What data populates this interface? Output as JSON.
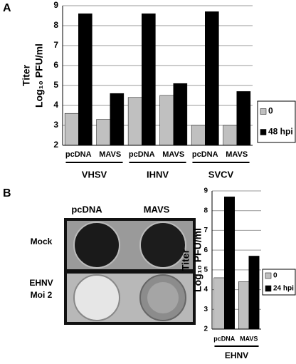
{
  "chart_data": [
    {
      "type": "bar",
      "y_label": [
        "Titer",
        "Log₁₀ PFU/ml"
      ],
      "categories": [
        "pcDNA",
        "MAVS",
        "pcDNA",
        "MAVS",
        "pcDNA",
        "MAVS"
      ],
      "groups": [
        "VHSV",
        "IHNV",
        "SVCV"
      ],
      "series": [
        {
          "name": "0",
          "color": "#c0c0c0",
          "values": [
            3.6,
            3.3,
            4.4,
            4.5,
            3.0,
            3.0
          ]
        },
        {
          "name": "48 hpi",
          "color": "#000000",
          "values": [
            8.6,
            4.6,
            8.6,
            5.1,
            8.7,
            4.7
          ]
        }
      ],
      "ylim": [
        2,
        9
      ],
      "yticks": [
        2,
        3,
        4,
        5,
        6,
        7,
        8,
        9
      ],
      "grid": true,
      "legend": "right"
    },
    {
      "type": "bar",
      "y_label": [
        "Titer",
        "Log₁₀ PFU/ml"
      ],
      "categories": [
        "pcDNA",
        "MAVS"
      ],
      "groups": [
        "EHNV"
      ],
      "series": [
        {
          "name": "0",
          "color": "#c0c0c0",
          "values": [
            4.6,
            4.4
          ]
        },
        {
          "name": "24 hpi",
          "color": "#000000",
          "values": [
            8.7,
            5.7
          ]
        }
      ],
      "ylim": [
        2,
        9
      ],
      "yticks": [
        2,
        3,
        4,
        5,
        6,
        7,
        8,
        9
      ],
      "grid": true,
      "legend": "right"
    }
  ],
  "figure": {
    "panel_labels": [
      "A",
      "B"
    ],
    "photo": {
      "column_labels": [
        "pcDNA",
        "MAVS"
      ],
      "row_labels": [
        [
          "Mock"
        ],
        [
          "EHNV",
          "Moi 2"
        ]
      ]
    }
  }
}
